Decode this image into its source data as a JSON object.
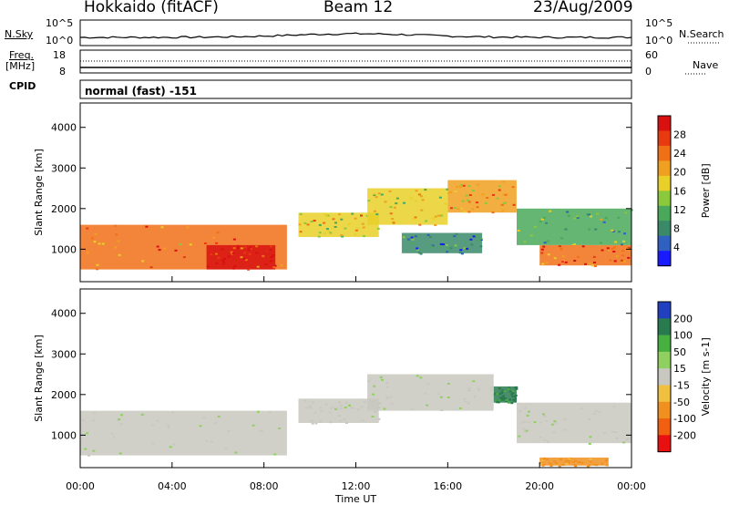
{
  "header": {
    "station": "Hokkaido (fitACF)",
    "beam": "Beam 12",
    "date": "23/Aug/2009"
  },
  "noise_panel": {
    "left_label": "N.Sky",
    "right_label": "N.Search",
    "left_ticks": [
      "10^5",
      "10^0"
    ],
    "right_ticks": [
      "10^5",
      "10^0"
    ]
  },
  "freq_panel": {
    "left_label_line1": "Freq.",
    "left_label_line2": "[MHz]",
    "left_ticks": [
      "18",
      "8"
    ],
    "right_ticks": [
      "60",
      "0"
    ],
    "right_label": "Nave",
    "cpid_label": "CPID",
    "cpid_value": "normal (fast) -151"
  },
  "chart_data": [
    {
      "type": "heatmap",
      "name": "power",
      "ylabel": "Slant Range [km]",
      "xlabel": "Time UT",
      "ylim": [
        200,
        4600
      ],
      "yticks": [
        1000,
        2000,
        3000,
        4000
      ],
      "x_ticks": [
        "00:00",
        "04:00",
        "08:00",
        "12:00",
        "16:00",
        "20:00",
        "00:00"
      ],
      "colorbar": {
        "label": "Power [dB]",
        "ticks": [
          "4",
          "8",
          "12",
          "16",
          "20",
          "24",
          "28"
        ],
        "colors": [
          "#1a1aff",
          "#3060c0",
          "#3a8a6a",
          "#4aa85a",
          "#8cc83c",
          "#e8d028",
          "#f0a020",
          "#f07018",
          "#e83a10",
          "#d81010"
        ]
      },
      "bands": [
        {
          "t0": 0.0,
          "t1": 9.0,
          "r0": 500,
          "r1": 1600,
          "v": 22
        },
        {
          "t0": 5.5,
          "t1": 8.5,
          "r0": 500,
          "r1": 1100,
          "v": 28
        },
        {
          "t0": 9.5,
          "t1": 13.0,
          "r0": 1300,
          "r1": 1900,
          "v": 18
        },
        {
          "t0": 12.5,
          "t1": 16.0,
          "r0": 1600,
          "r1": 2500,
          "v": 16
        },
        {
          "t0": 16.0,
          "t1": 19.0,
          "r0": 1900,
          "r1": 2700,
          "v": 20
        },
        {
          "t0": 19.0,
          "t1": 24.0,
          "r0": 1100,
          "r1": 2000,
          "v": 12
        },
        {
          "t0": 20.0,
          "t1": 24.0,
          "r0": 600,
          "r1": 1100,
          "v": 24
        },
        {
          "t0": 14.0,
          "t1": 17.5,
          "r0": 900,
          "r1": 1400,
          "v": 8
        }
      ]
    },
    {
      "type": "heatmap",
      "name": "velocity",
      "ylabel": "Slant Range [km]",
      "xlabel": "Time UT",
      "ylim": [
        200,
        4600
      ],
      "yticks": [
        1000,
        2000,
        3000,
        4000
      ],
      "x_ticks": [
        "00:00",
        "04:00",
        "08:00",
        "12:00",
        "16:00",
        "20:00",
        "00:00"
      ],
      "colorbar": {
        "label": "Velocity [m s-1]",
        "ticks": [
          "200",
          "100",
          "50",
          "15",
          "-15",
          "-50",
          "-100",
          "-200"
        ],
        "colors": [
          "#2040c0",
          "#2a7a50",
          "#48b040",
          "#90d060",
          "#c8c8c0",
          "#f0c040",
          "#f09020",
          "#f06010",
          "#e81010"
        ]
      },
      "bands": [
        {
          "t0": 0.0,
          "t1": 9.0,
          "r0": 500,
          "r1": 1600,
          "v": 0
        },
        {
          "t0": 9.5,
          "t1": 13.0,
          "r0": 1300,
          "r1": 1900,
          "v": 0
        },
        {
          "t0": 12.5,
          "t1": 18.0,
          "r0": 1600,
          "r1": 2500,
          "v": 0
        },
        {
          "t0": 18.0,
          "t1": 19.0,
          "r0": 1800,
          "r1": 2200,
          "v": 60
        },
        {
          "t0": 19.0,
          "t1": 24.0,
          "r0": 800,
          "r1": 1800,
          "v": 0
        },
        {
          "t0": 20.0,
          "t1": 23.0,
          "r0": 250,
          "r1": 450,
          "v": -60
        }
      ]
    }
  ]
}
